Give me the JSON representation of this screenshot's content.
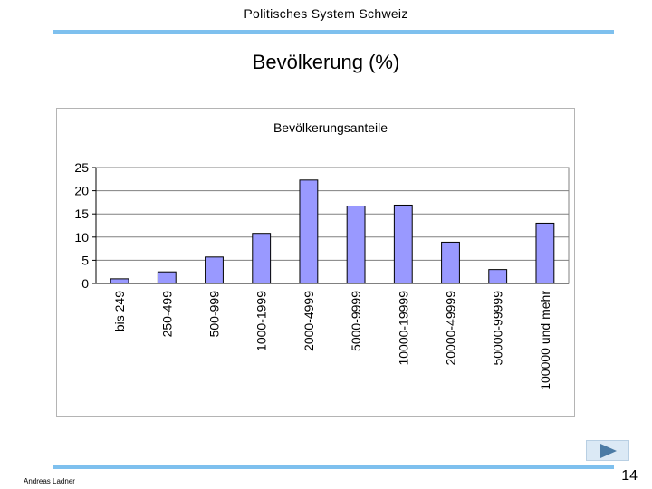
{
  "header": {
    "title": "Politisches System Schweiz"
  },
  "slide": {
    "title": "Bevölkerung (%)"
  },
  "footer": {
    "author": "Andreas Ladner",
    "page_number": "14",
    "next_icon": "play-icon"
  },
  "colors": {
    "accent_rule": "#7ec0ee",
    "bar_fill": "#9999ff",
    "bar_stroke": "#000000"
  },
  "chart_data": {
    "type": "bar",
    "title": "Bevölkerungsanteile",
    "xlabel": "",
    "ylabel": "",
    "categories": [
      "bis 249",
      "250-499",
      "500-999",
      "1000-1999",
      "2000-4999",
      "5000-9999",
      "10000-19999",
      "20000-49999",
      "50000-99999",
      "100000 und mehr"
    ],
    "values": [
      1.0,
      2.5,
      5.7,
      10.8,
      22.3,
      16.7,
      16.9,
      8.9,
      3.0,
      13.0
    ],
    "ylim": [
      0,
      25
    ],
    "yticks": [
      "0",
      "5",
      "10",
      "15",
      "20",
      "25"
    ],
    "grid": true,
    "legend": "none"
  }
}
